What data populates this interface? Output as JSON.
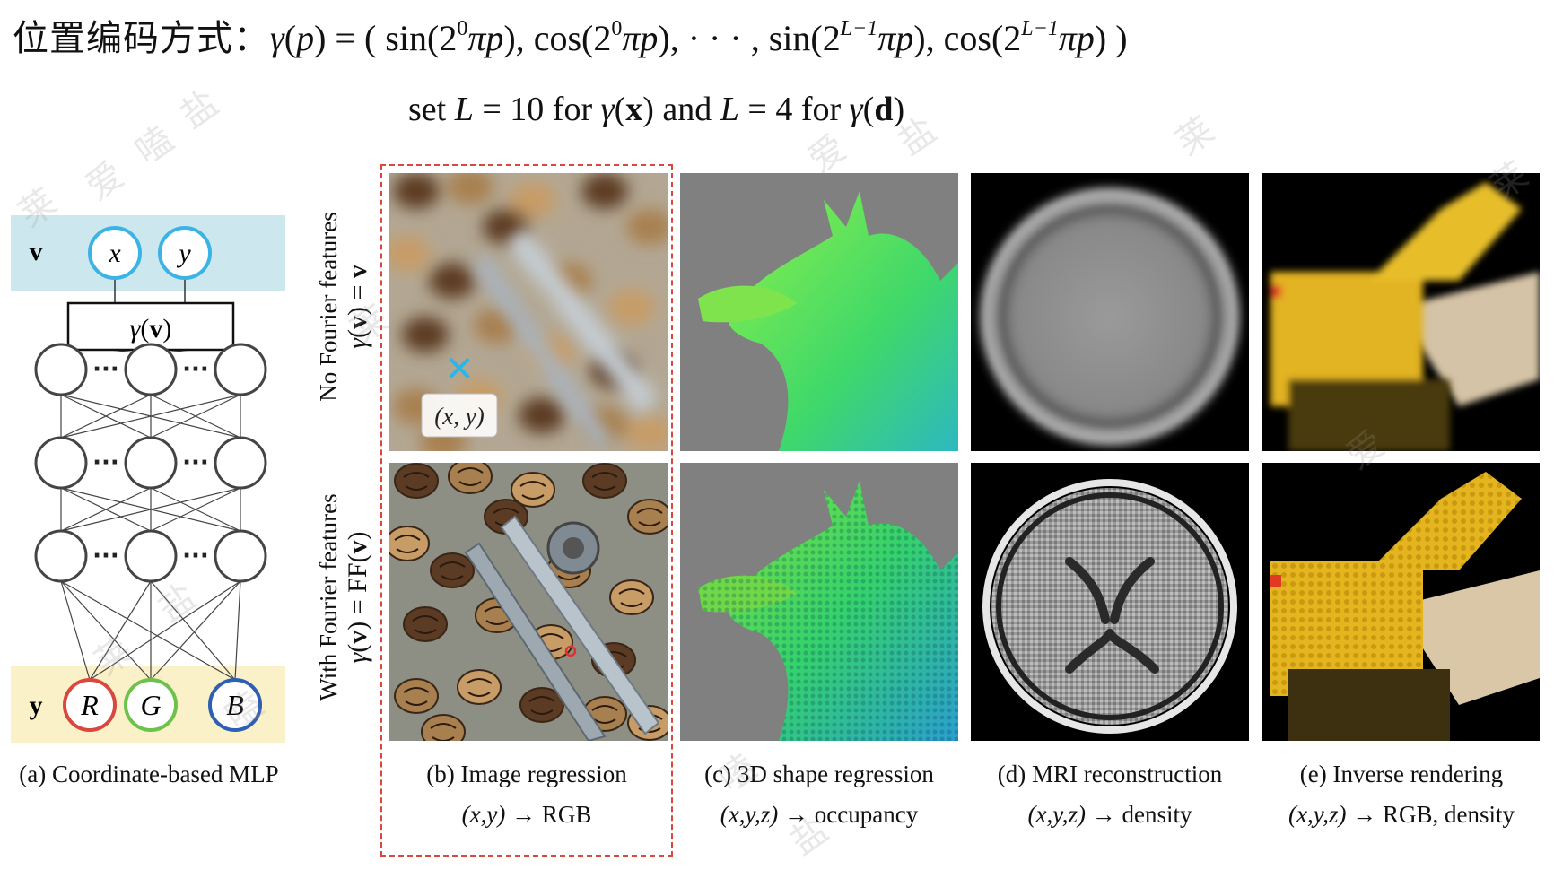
{
  "formula": {
    "prefix_cn": "位置编码方式：",
    "gamma": "γ",
    "lhs_var": "p",
    "sin": "sin",
    "cos": "cos",
    "two": "2",
    "exp0": "0",
    "expL": "L−1",
    "pi": "π",
    "p": "p",
    "dots": "· · ·"
  },
  "setting": {
    "set": "set",
    "L": "L",
    "eq10": " = 10 ",
    "for1": "for",
    "x": "x",
    "and": "and",
    "eq4": " = 4 ",
    "for2": "for",
    "d": "d"
  },
  "mlp": {
    "input_label": "v",
    "input_nodes": [
      "x",
      "y"
    ],
    "encoding_box": "γ(v)",
    "encoding_gamma": "γ",
    "encoding_v": "v",
    "dots": "···",
    "output_label": "y",
    "output_nodes": [
      "R",
      "G",
      "B"
    ],
    "output_colors": [
      "#d9473f",
      "#6cc24a",
      "#2f5fb3"
    ],
    "input_color": "#3bb3e4",
    "input_band_color": "#cde7ef",
    "output_band_color": "#fbf1c8"
  },
  "row_labels": {
    "top_line1": "No Fourier features",
    "top_gamma": "γ",
    "top_v": "v",
    "top_eq": " = ",
    "top_v2": "v",
    "bottom_line1": "With Fourier features",
    "bottom_gamma": "γ",
    "bottom_v": "v",
    "bottom_eq": " = FF(",
    "bottom_v2": "v",
    "bottom_close": ")"
  },
  "point_label": "(x, y)",
  "captions": {
    "a": "(a) Coordinate-based MLP",
    "b_title": "(b) Image regression",
    "b_input": "(x,y)",
    "b_output": "RGB",
    "c_title": "(c) 3D shape regression",
    "c_input": "(x,y,z)",
    "c_output": "occupancy",
    "d_title": "(d) MRI reconstruction",
    "d_input": "(x,y,z)",
    "d_output": "density",
    "e_title": "(e) Inverse rendering",
    "e_input": "(x,y,z)",
    "e_output": "RGB, density",
    "arrow": "→"
  },
  "watermark_chars": [
    "莱",
    "爱",
    "嗑",
    "盐",
    "莱",
    "嗑",
    "盐",
    "莱",
    "爱",
    "盐"
  ]
}
